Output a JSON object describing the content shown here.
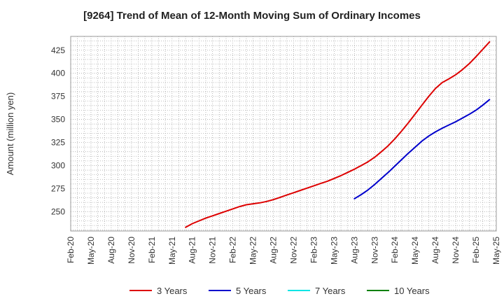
{
  "chart_data": {
    "type": "line",
    "title": "[9264]  Trend of Mean of 12-Month Moving Sum of Ordinary Incomes",
    "xlabel": "",
    "ylabel": "Amount (million yen)",
    "ylim": [
      229,
      440
    ],
    "yticks": [
      250,
      275,
      300,
      325,
      350,
      375,
      400,
      425
    ],
    "xticks": [
      "Feb-20",
      "May-20",
      "Aug-20",
      "Nov-20",
      "Feb-21",
      "May-21",
      "Aug-21",
      "Nov-21",
      "Feb-22",
      "May-22",
      "Aug-22",
      "Nov-22",
      "Feb-23",
      "May-23",
      "Aug-23",
      "Nov-23",
      "Feb-24",
      "May-24",
      "Aug-24",
      "Nov-24",
      "Feb-25",
      "May-25"
    ],
    "grid": true,
    "legend_position": "bottom",
    "series": [
      {
        "name": "3 Years",
        "color": "#dd0000",
        "points": [
          [
            "Jul-21",
            233
          ],
          [
            "Aug-21",
            237
          ],
          [
            "Sep-21",
            240
          ],
          [
            "Oct-21",
            243
          ],
          [
            "Nov-21",
            245.5
          ],
          [
            "Dec-21",
            248
          ],
          [
            "Jan-22",
            250.5
          ],
          [
            "Feb-22",
            253
          ],
          [
            "Mar-22",
            255.5
          ],
          [
            "Apr-22",
            257.5
          ],
          [
            "May-22",
            258.5
          ],
          [
            "Jun-22",
            259.5
          ],
          [
            "Jul-22",
            261
          ],
          [
            "Aug-22",
            263
          ],
          [
            "Sep-22",
            265.5
          ],
          [
            "Oct-22",
            268
          ],
          [
            "Nov-22",
            270.5
          ],
          [
            "Dec-22",
            273
          ],
          [
            "Jan-23",
            275.5
          ],
          [
            "Feb-23",
            278
          ],
          [
            "Mar-23",
            280.5
          ],
          [
            "Apr-23",
            283
          ],
          [
            "May-23",
            286
          ],
          [
            "Jun-23",
            289
          ],
          [
            "Jul-23",
            292.5
          ],
          [
            "Aug-23",
            296
          ],
          [
            "Sep-23",
            300
          ],
          [
            "Oct-23",
            304
          ],
          [
            "Nov-23",
            309
          ],
          [
            "Dec-23",
            315
          ],
          [
            "Jan-24",
            321.5
          ],
          [
            "Feb-24",
            329
          ],
          [
            "Mar-24",
            337.5
          ],
          [
            "Apr-24",
            346.5
          ],
          [
            "May-24",
            356
          ],
          [
            "Jun-24",
            365.5
          ],
          [
            "Jul-24",
            375
          ],
          [
            "Aug-24",
            383.5
          ],
          [
            "Sep-24",
            390
          ],
          [
            "Oct-24",
            394
          ],
          [
            "Nov-24",
            398.5
          ],
          [
            "Dec-24",
            404
          ],
          [
            "Jan-25",
            410.5
          ],
          [
            "Feb-25",
            418
          ],
          [
            "Mar-25",
            426
          ],
          [
            "Apr-25",
            434
          ]
        ]
      },
      {
        "name": "5 Years",
        "color": "#0000cc",
        "points": [
          [
            "Aug-23",
            264
          ],
          [
            "Sep-23",
            268.5
          ],
          [
            "Oct-23",
            273.5
          ],
          [
            "Nov-23",
            279.5
          ],
          [
            "Dec-23",
            286
          ],
          [
            "Jan-24",
            292.5
          ],
          [
            "Feb-24",
            299.5
          ],
          [
            "Mar-24",
            306.5
          ],
          [
            "Apr-24",
            313.5
          ],
          [
            "May-24",
            320
          ],
          [
            "Jun-24",
            326.5
          ],
          [
            "Jul-24",
            332
          ],
          [
            "Aug-24",
            336.5
          ],
          [
            "Sep-24",
            340.5
          ],
          [
            "Oct-24",
            344
          ],
          [
            "Nov-24",
            347.5
          ],
          [
            "Dec-24",
            351.5
          ],
          [
            "Jan-25",
            355.5
          ],
          [
            "Feb-25",
            360
          ],
          [
            "Mar-25",
            365.5
          ],
          [
            "Apr-25",
            371.5
          ]
        ]
      },
      {
        "name": "7 Years",
        "color": "#00e5e5",
        "points": []
      },
      {
        "name": "10 Years",
        "color": "#008000",
        "points": []
      }
    ]
  }
}
